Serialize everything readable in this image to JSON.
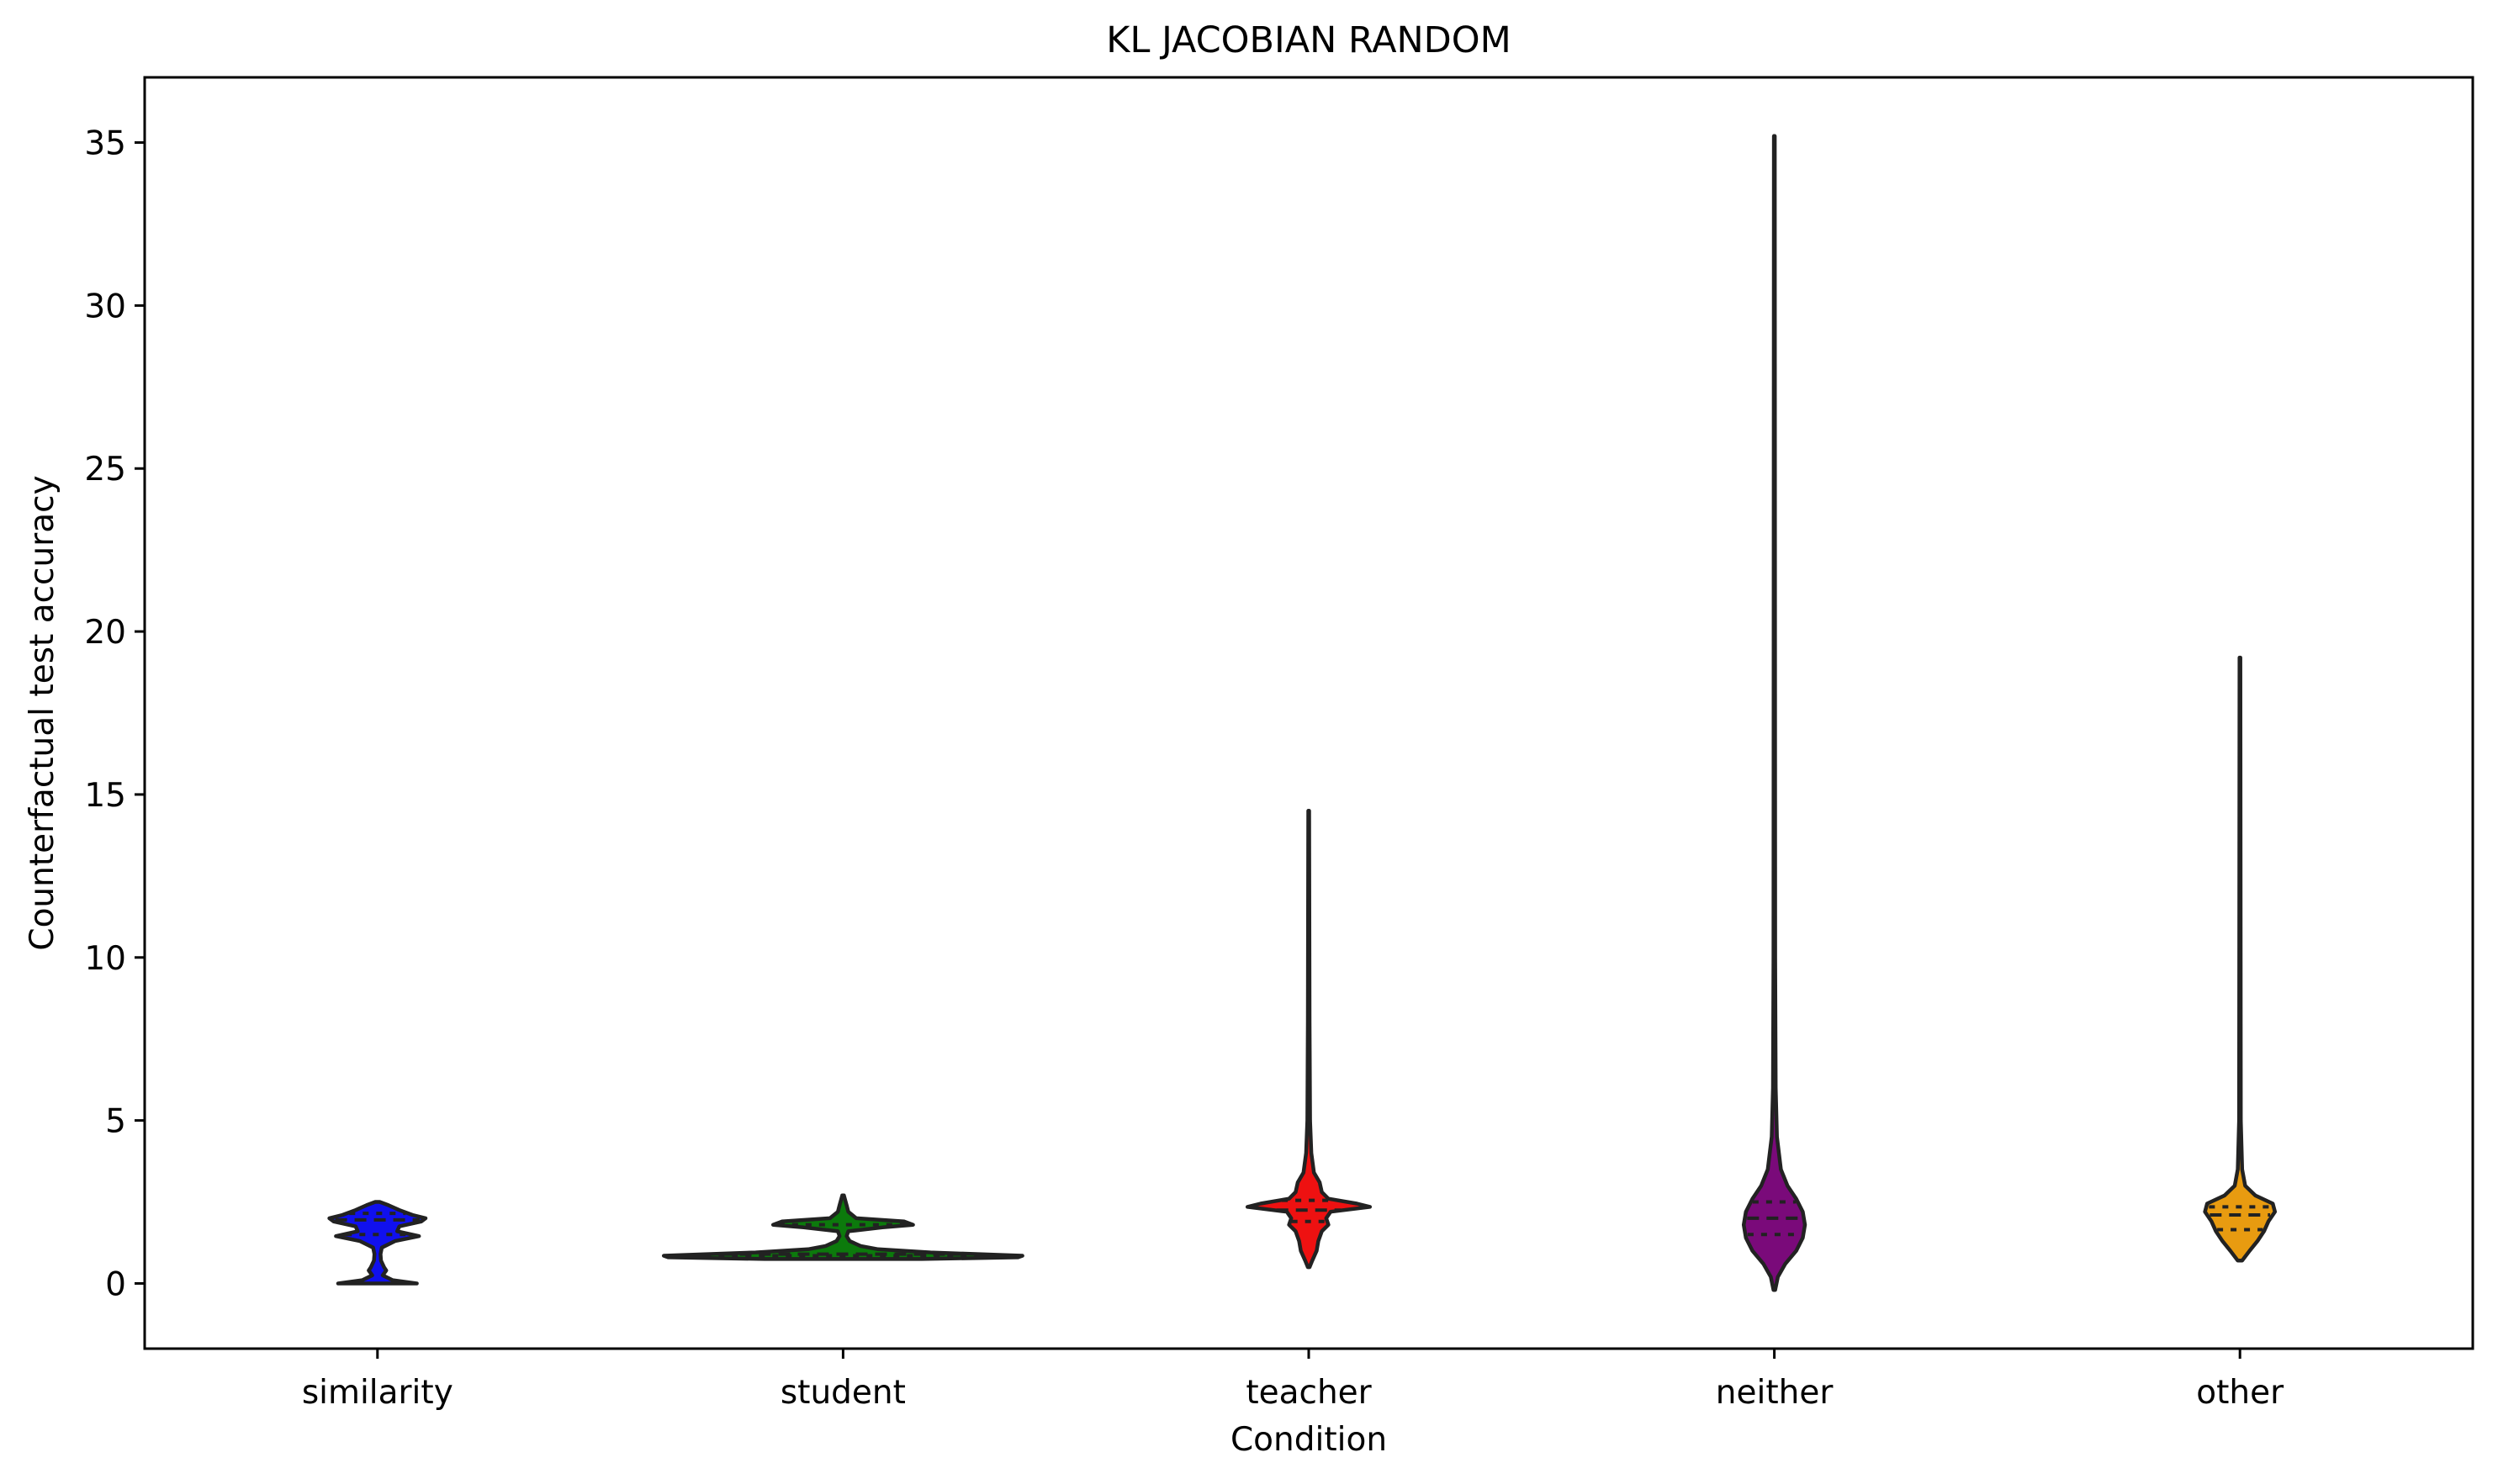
{
  "chart_data": {
    "type": "violin",
    "title": "KL JACOBIAN RANDOM",
    "xlabel": "Condition",
    "ylabel": "Counterfactual test accuracy",
    "ylim": [
      -2,
      37
    ],
    "yticks": [
      0,
      5,
      10,
      15,
      20,
      25,
      30,
      35
    ],
    "categories": [
      "similarity",
      "student",
      "teacher",
      "neither",
      "other"
    ],
    "grid": false,
    "series": [
      {
        "category": "similarity",
        "color": "#1010ee",
        "min": 0.0,
        "max": 2.5,
        "quartiles": [
          1.5,
          1.95,
          2.15
        ],
        "density": [
          [
            0.0,
            0.9
          ],
          [
            0.1,
            0.35
          ],
          [
            0.25,
            0.12
          ],
          [
            0.4,
            0.2
          ],
          [
            0.5,
            0.15
          ],
          [
            0.7,
            0.08
          ],
          [
            0.9,
            0.07
          ],
          [
            1.1,
            0.1
          ],
          [
            1.3,
            0.4
          ],
          [
            1.45,
            0.95
          ],
          [
            1.6,
            0.45
          ],
          [
            1.75,
            0.5
          ],
          [
            1.9,
            1.0
          ],
          [
            2.0,
            1.1
          ],
          [
            2.1,
            0.8
          ],
          [
            2.25,
            0.5
          ],
          [
            2.4,
            0.25
          ],
          [
            2.5,
            0.05
          ]
        ]
      },
      {
        "category": "student",
        "color": "#0c7a0c",
        "min": 0.75,
        "max": 2.7,
        "quartiles": [
          0.85,
          0.9,
          1.8
        ],
        "density": [
          [
            0.75,
            1.8
          ],
          [
            0.8,
            4.0
          ],
          [
            0.85,
            4.1
          ],
          [
            0.95,
            2.0
          ],
          [
            1.05,
            0.8
          ],
          [
            1.15,
            0.4
          ],
          [
            1.3,
            0.15
          ],
          [
            1.45,
            0.08
          ],
          [
            1.6,
            0.12
          ],
          [
            1.72,
            0.9
          ],
          [
            1.8,
            1.6
          ],
          [
            1.9,
            1.4
          ],
          [
            2.0,
            0.3
          ],
          [
            2.2,
            0.12
          ],
          [
            2.4,
            0.08
          ],
          [
            2.7,
            0.02
          ]
        ]
      },
      {
        "category": "teacher",
        "color": "#ee1111",
        "min": 0.5,
        "max": 14.5,
        "quartiles": [
          1.9,
          2.25,
          2.55
        ],
        "density": [
          [
            0.5,
            0.02
          ],
          [
            0.7,
            0.08
          ],
          [
            1.0,
            0.18
          ],
          [
            1.3,
            0.22
          ],
          [
            1.6,
            0.3
          ],
          [
            1.8,
            0.45
          ],
          [
            2.0,
            0.4
          ],
          [
            2.2,
            0.5
          ],
          [
            2.35,
            1.4
          ],
          [
            2.45,
            1.1
          ],
          [
            2.6,
            0.45
          ],
          [
            2.8,
            0.3
          ],
          [
            3.1,
            0.25
          ],
          [
            3.4,
            0.12
          ],
          [
            4.0,
            0.06
          ],
          [
            5.0,
            0.03
          ],
          [
            8.0,
            0.02
          ],
          [
            14.5,
            0.01
          ]
        ]
      },
      {
        "category": "neither",
        "color": "#7a0a7a",
        "min": -0.2,
        "max": 35.2,
        "quartiles": [
          1.5,
          2.0,
          2.5
        ],
        "density": [
          [
            -0.2,
            0.02
          ],
          [
            0.2,
            0.08
          ],
          [
            0.6,
            0.25
          ],
          [
            1.0,
            0.5
          ],
          [
            1.4,
            0.65
          ],
          [
            1.8,
            0.7
          ],
          [
            2.2,
            0.65
          ],
          [
            2.6,
            0.5
          ],
          [
            3.0,
            0.3
          ],
          [
            3.5,
            0.15
          ],
          [
            4.5,
            0.06
          ],
          [
            6.0,
            0.03
          ],
          [
            10.0,
            0.02
          ],
          [
            35.2,
            0.01
          ]
        ]
      },
      {
        "category": "other",
        "color": "#e89b10",
        "min": 0.7,
        "max": 19.2,
        "quartiles": [
          1.65,
          2.1,
          2.35
        ],
        "density": [
          [
            0.7,
            0.05
          ],
          [
            1.0,
            0.22
          ],
          [
            1.3,
            0.4
          ],
          [
            1.6,
            0.55
          ],
          [
            1.9,
            0.65
          ],
          [
            2.2,
            0.8
          ],
          [
            2.45,
            0.75
          ],
          [
            2.7,
            0.35
          ],
          [
            3.0,
            0.12
          ],
          [
            3.5,
            0.05
          ],
          [
            5.0,
            0.02
          ],
          [
            19.2,
            0.01
          ]
        ]
      }
    ]
  }
}
